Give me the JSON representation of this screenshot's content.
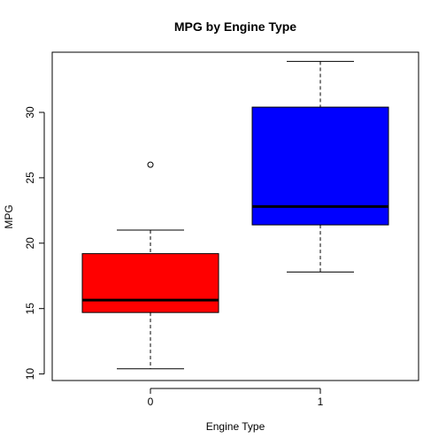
{
  "chart_data": {
    "type": "boxplot",
    "title": "MPG by Engine Type",
    "xlabel": "Engine Type",
    "ylabel": "MPG",
    "categories": [
      "0",
      "1"
    ],
    "ylim": [
      9.5,
      34.6
    ],
    "yticks": [
      10,
      15,
      20,
      25,
      30
    ],
    "grid": false,
    "legend": "none",
    "boxes": [
      {
        "category": "0",
        "color": "#ff0000",
        "whisker_low": 10.4,
        "q1": 14.7,
        "median": 15.65,
        "q3": 19.2,
        "whisker_high": 21.0,
        "outliers": [
          26.0
        ]
      },
      {
        "category": "1",
        "color": "#0000ff",
        "whisker_low": 17.8,
        "q1": 21.4,
        "median": 22.8,
        "q3": 30.4,
        "whisker_high": 33.9,
        "outliers": []
      }
    ]
  }
}
